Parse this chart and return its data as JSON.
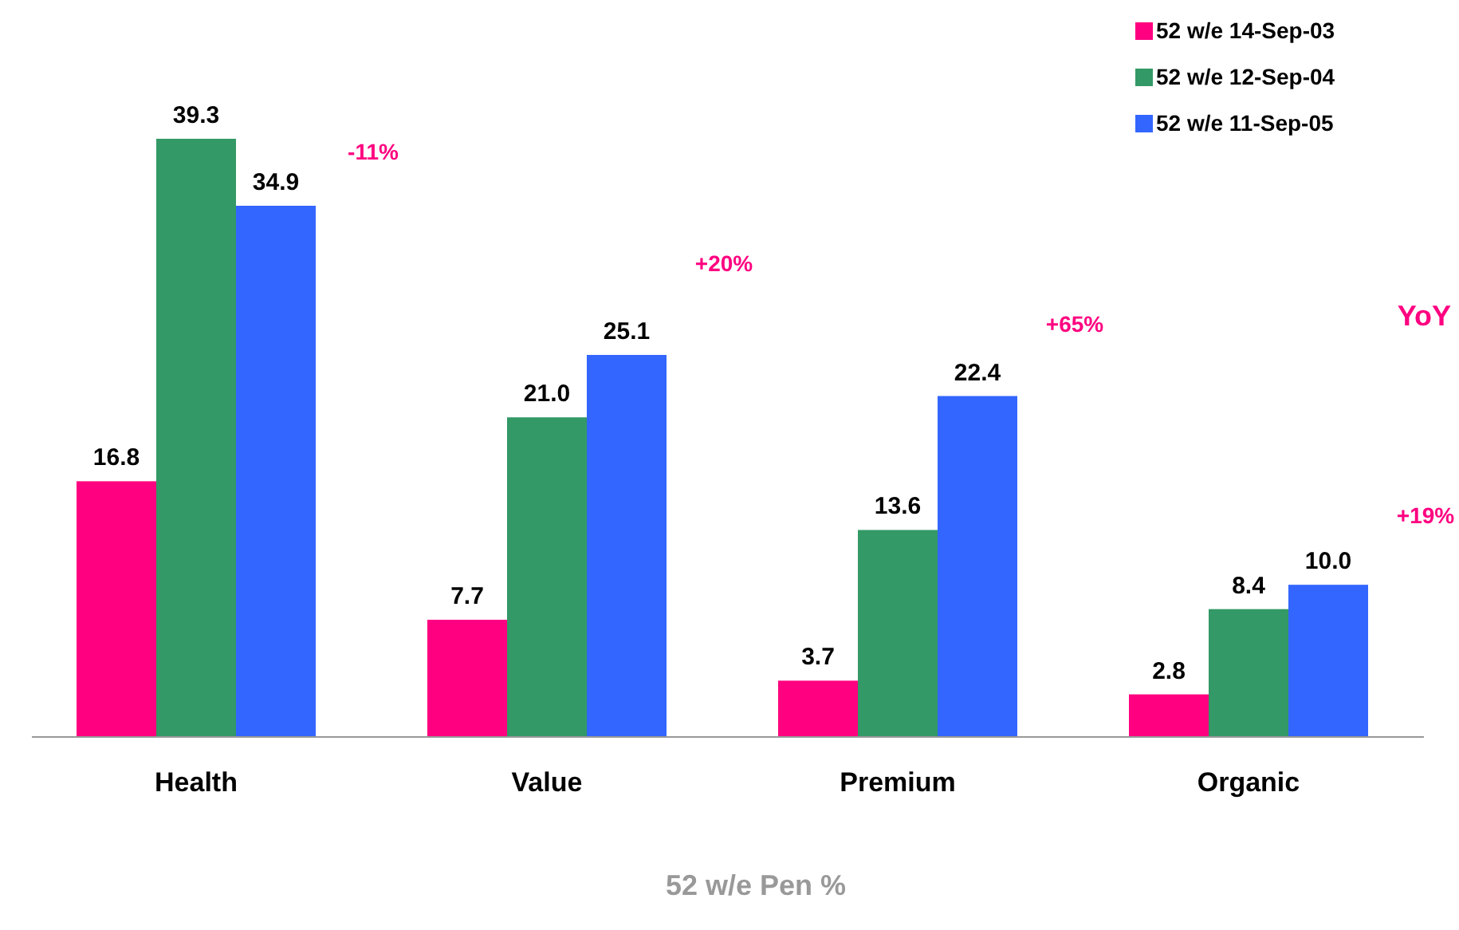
{
  "chart_data": {
    "type": "bar",
    "categories": [
      "Health",
      "Value",
      "Premium",
      "Organic"
    ],
    "series": [
      {
        "name": "52 w/e 14-Sep-03",
        "color": "#ff0080",
        "values": [
          16.8,
          7.7,
          3.7,
          2.8
        ],
        "value_labels": [
          "16.8",
          "7.7",
          "3.7",
          "2.8"
        ]
      },
      {
        "name": "52 w/e 12-Sep-04",
        "color": "#339966",
        "values": [
          39.3,
          21.0,
          13.6,
          8.4
        ],
        "value_labels": [
          "39.3",
          "21.0",
          "13.6",
          "8.4"
        ]
      },
      {
        "name": "52 w/e 11-Sep-05",
        "color": "#3366ff",
        "values": [
          34.9,
          25.1,
          22.4,
          10.0
        ],
        "value_labels": [
          "34.9",
          "25.1",
          "22.4",
          "10.0"
        ]
      }
    ],
    "legend": "top right",
    "xlabel": "52 w/e Pen %",
    "annotations": [
      "-11%",
      "+20%",
      "+65%",
      "+19%",
      "YoY"
    ]
  }
}
